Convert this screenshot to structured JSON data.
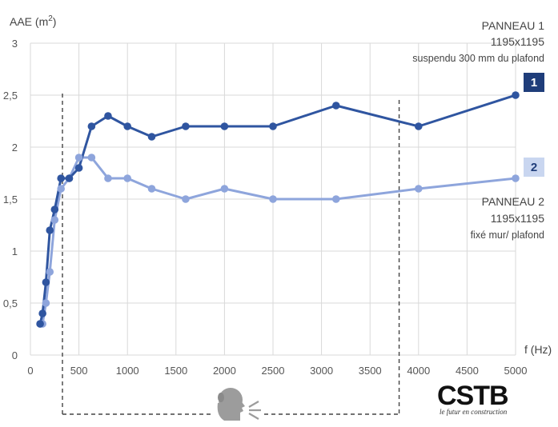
{
  "chart_data": {
    "type": "line",
    "ylabel_main": "AAE (m",
    "ylabel_sup": "2",
    "ylabel_close": ")",
    "xlabel": "f (Hz)",
    "xlim": [
      0,
      5000
    ],
    "ylim": [
      0,
      3
    ],
    "xticks": [
      0,
      500,
      1000,
      1500,
      2000,
      2500,
      3000,
      3500,
      4000,
      4500,
      5000
    ],
    "xtick_labels": [
      "0",
      "500",
      "1000",
      "1500",
      "2000",
      "2500",
      "3000",
      "3500",
      "4000",
      "4500",
      "5000"
    ],
    "yticks": [
      0,
      0.5,
      1,
      1.5,
      2,
      2.5,
      3
    ],
    "ytick_labels": [
      "0",
      "0,5",
      "1",
      "1,5",
      "2",
      "2,5",
      "3"
    ],
    "grid": true,
    "series": [
      {
        "name": "PANNEAU 1",
        "color": "#2f55a0",
        "x": [
          100,
          125,
          160,
          200,
          250,
          315,
          400,
          500,
          630,
          800,
          1000,
          1250,
          1600,
          2000,
          2500,
          3150,
          4000,
          5000
        ],
        "y": [
          0.3,
          0.4,
          0.7,
          1.2,
          1.4,
          1.7,
          1.7,
          1.8,
          2.2,
          2.3,
          2.2,
          2.1,
          2.2,
          2.2,
          2.2,
          2.4,
          2.2,
          2.5
        ]
      },
      {
        "name": "PANNEAU 2",
        "color": "#8ea5dc",
        "x": [
          100,
          125,
          160,
          200,
          250,
          315,
          400,
          500,
          630,
          800,
          1000,
          1250,
          1600,
          2000,
          2500,
          3150,
          4000,
          5000
        ],
        "y": [
          0.3,
          0.3,
          0.5,
          0.8,
          1.3,
          1.6,
          1.7,
          1.9,
          1.9,
          1.7,
          1.7,
          1.6,
          1.5,
          1.6,
          1.5,
          1.5,
          1.6,
          1.7
        ]
      }
    ],
    "speech_range_hz": [
      330,
      3800
    ]
  },
  "annotations": {
    "panel1": {
      "line1": "PANNEAU 1",
      "line2": "1195x1195",
      "line3": "suspendu 300 mm du plafond",
      "badge": "1",
      "badge_bg": "#1f3d7a",
      "badge_fg": "#ffffff"
    },
    "panel2": {
      "line1": "PANNEAU 2",
      "line2": "1195x1195",
      "line3": "fixé mur/ plafond",
      "badge": "2",
      "badge_bg": "#c9d6f0",
      "badge_fg": "#1f3d7a"
    }
  },
  "logo": {
    "main": "CSTB",
    "sub": "le futur en construction"
  },
  "icons": {
    "speaker": "speaking-head-icon"
  }
}
